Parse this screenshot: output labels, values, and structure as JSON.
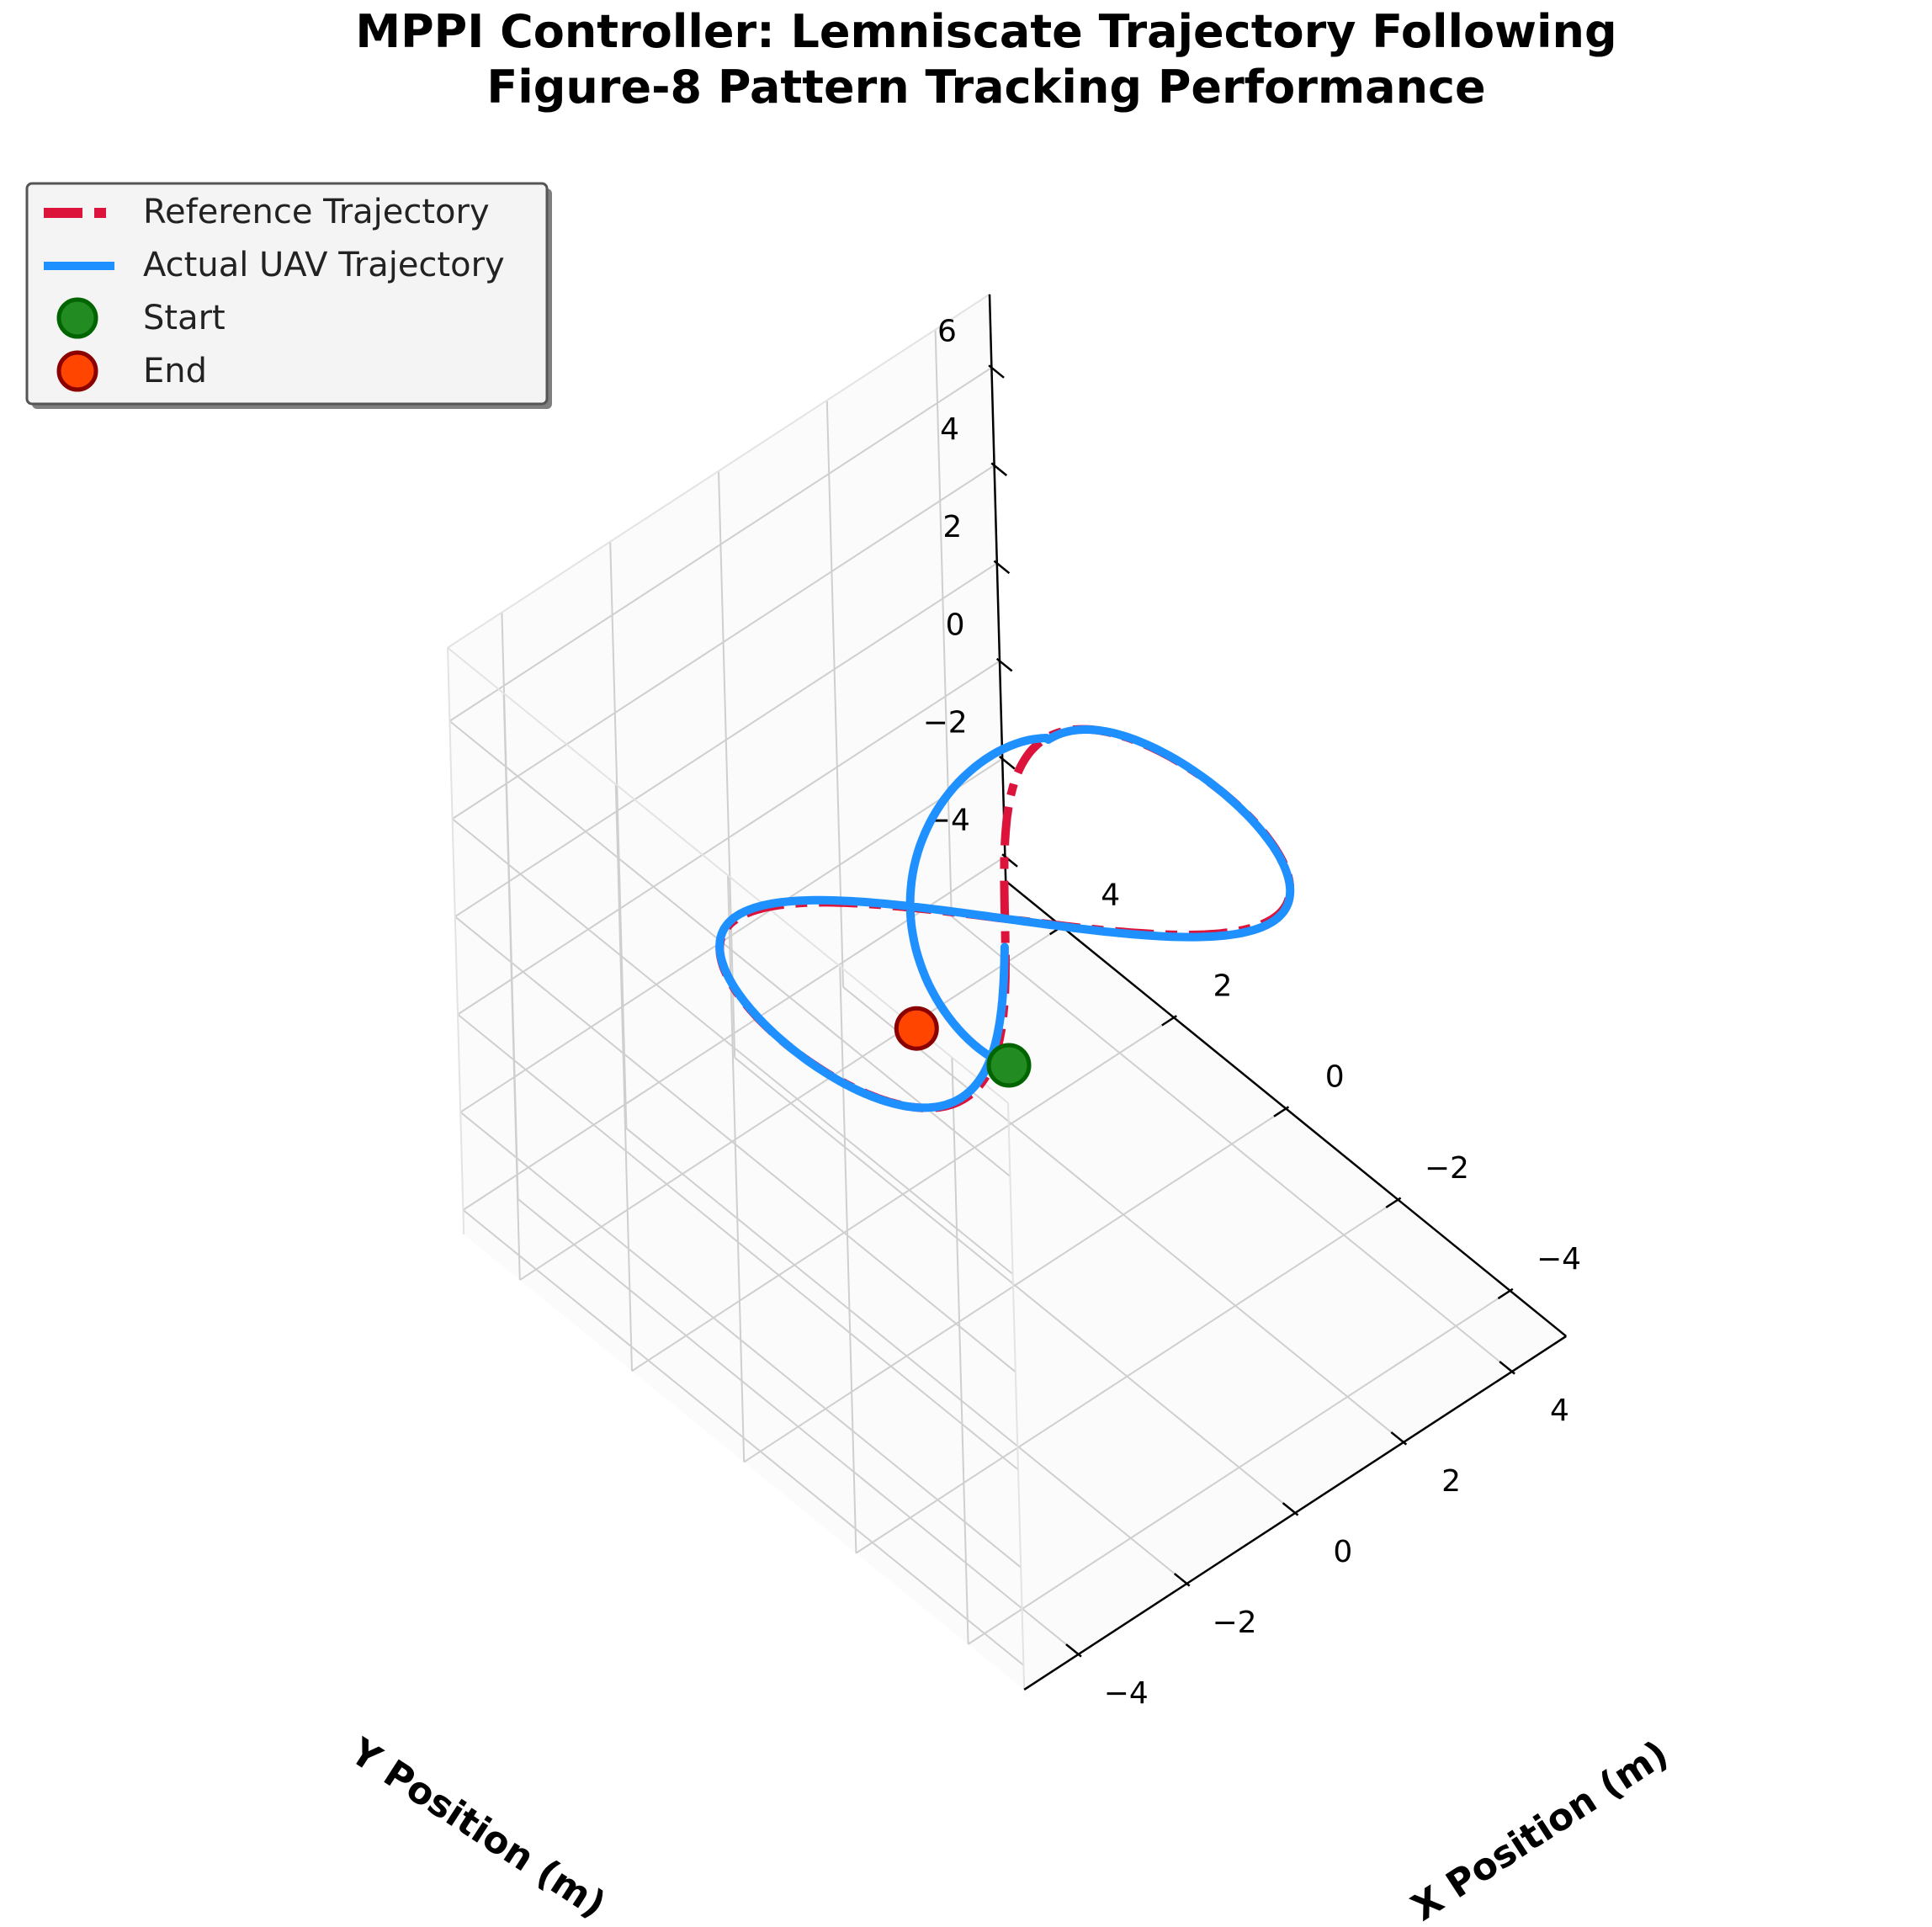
{
  "chart_data": {
    "type": "line",
    "projection": "3d",
    "title": "MPPI Controller: Lemniscate Trajectory Following",
    "subtitle": "Figure-8 Pattern Tracking Performance",
    "xlabel": "X Position (m)",
    "ylabel": "Y Position (m)",
    "zlabel": "",
    "xlim": [
      -5,
      5
    ],
    "ylim": [
      -5,
      5
    ],
    "zlim": [
      -4.5,
      7.5
    ],
    "x_ticks": [
      "−4",
      "−2",
      "0",
      "2",
      "4"
    ],
    "x_tick_values": [
      -4,
      -2,
      0,
      2,
      4
    ],
    "y_ticks": [
      "−4",
      "−2",
      "0",
      "2",
      "4"
    ],
    "y_tick_values": [
      -4,
      -2,
      0,
      2,
      4
    ],
    "z_ticks": [
      "−4",
      "−2",
      "0",
      "2",
      "4",
      "6"
    ],
    "z_tick_values": [
      -4,
      -2,
      0,
      2,
      4,
      6
    ],
    "grid": true,
    "legend_position": "top-left",
    "legend": [
      {
        "label": "Reference Trajectory",
        "kind": "dashed-line",
        "color": "#dc143c"
      },
      {
        "label": "Actual UAV Trajectory",
        "kind": "line",
        "color": "#1e90ff"
      },
      {
        "label": "Start",
        "kind": "marker",
        "color": "#228b22",
        "edge": "#006400"
      },
      {
        "label": "End",
        "kind": "marker",
        "color": "#ff4500",
        "edge": "#8b0000"
      }
    ],
    "series": [
      {
        "name": "Reference Trajectory",
        "color": "#dc143c",
        "style": "dashed",
        "parametric": "lemniscate of Gerono",
        "amplitude_x": 4,
        "amplitude_y": 2,
        "z_center": 3,
        "z_amplitude": 0.3
      },
      {
        "name": "Actual UAV Trajectory",
        "color": "#1e90ff",
        "style": "solid",
        "start": [
          0,
          0,
          0
        ],
        "end": [
          -0.8,
          -2.45,
          3.27
        ]
      }
    ],
    "markers": [
      {
        "name": "Start",
        "x": 0,
        "y": 0,
        "z": 0,
        "color": "#228b22"
      },
      {
        "name": "End",
        "x": -0.8,
        "y": -2.45,
        "z": 3.27,
        "color": "#ff4500"
      }
    ]
  }
}
